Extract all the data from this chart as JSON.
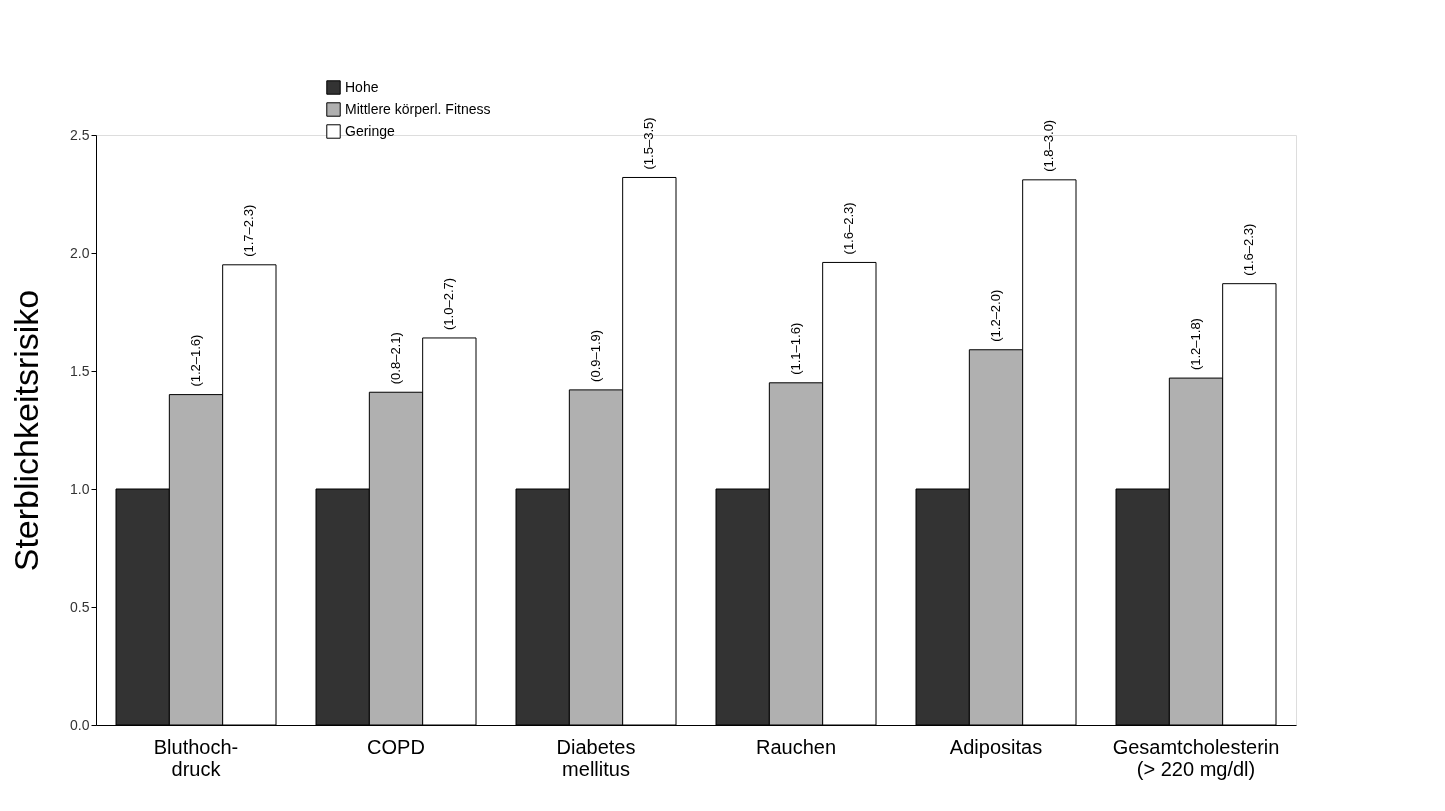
{
  "chart_data": {
    "type": "bar",
    "ylabel": "Sterblichkeitsrisiko",
    "categories": [
      "Bluthoch-\ndruck",
      "COPD",
      "Diabetes\nmellitus",
      "Rauchen",
      "Adipositas",
      "Gesamtcholesterin\n(> 220 mg/dl)"
    ],
    "series": [
      {
        "name": "Hohe",
        "color": "#333333",
        "values": [
          1.0,
          1.0,
          1.0,
          1.0,
          1.0,
          1.0
        ]
      },
      {
        "name": "Mittlere körperl. Fitness",
        "color": "#b0b0b0",
        "values": [
          1.4,
          1.41,
          1.42,
          1.45,
          1.59,
          1.47
        ],
        "value_labels": [
          "(1.2–1.6)",
          "(0.8–2.1)",
          "(0.9–1.9)",
          "(1.1–1.6)",
          "(1.2–2.0)",
          "(1.2–1.8)"
        ]
      },
      {
        "name": "Geringe",
        "color": "#ffffff",
        "values": [
          1.95,
          1.64,
          2.32,
          1.96,
          2.31,
          1.87
        ],
        "value_labels": [
          "(1.7–2.3)",
          "(1.0–2.7)",
          "(1.5–3.5)",
          "(1.6–2.3)",
          "(1.8–3.0)",
          "(1.6–2.3)"
        ]
      }
    ],
    "ylim": [
      0,
      2.5
    ],
    "yticks": [
      {
        "value": 0,
        "label": "0.0"
      },
      {
        "value": 0.5,
        "label": "0.5"
      },
      {
        "value": 1,
        "label": "1.0"
      },
      {
        "value": 1.5,
        "label": "1.5"
      },
      {
        "value": 2,
        "label": "2.0"
      },
      {
        "value": 2.5,
        "label": "2.5"
      }
    ],
    "legend": "top left",
    "grid": false
  }
}
